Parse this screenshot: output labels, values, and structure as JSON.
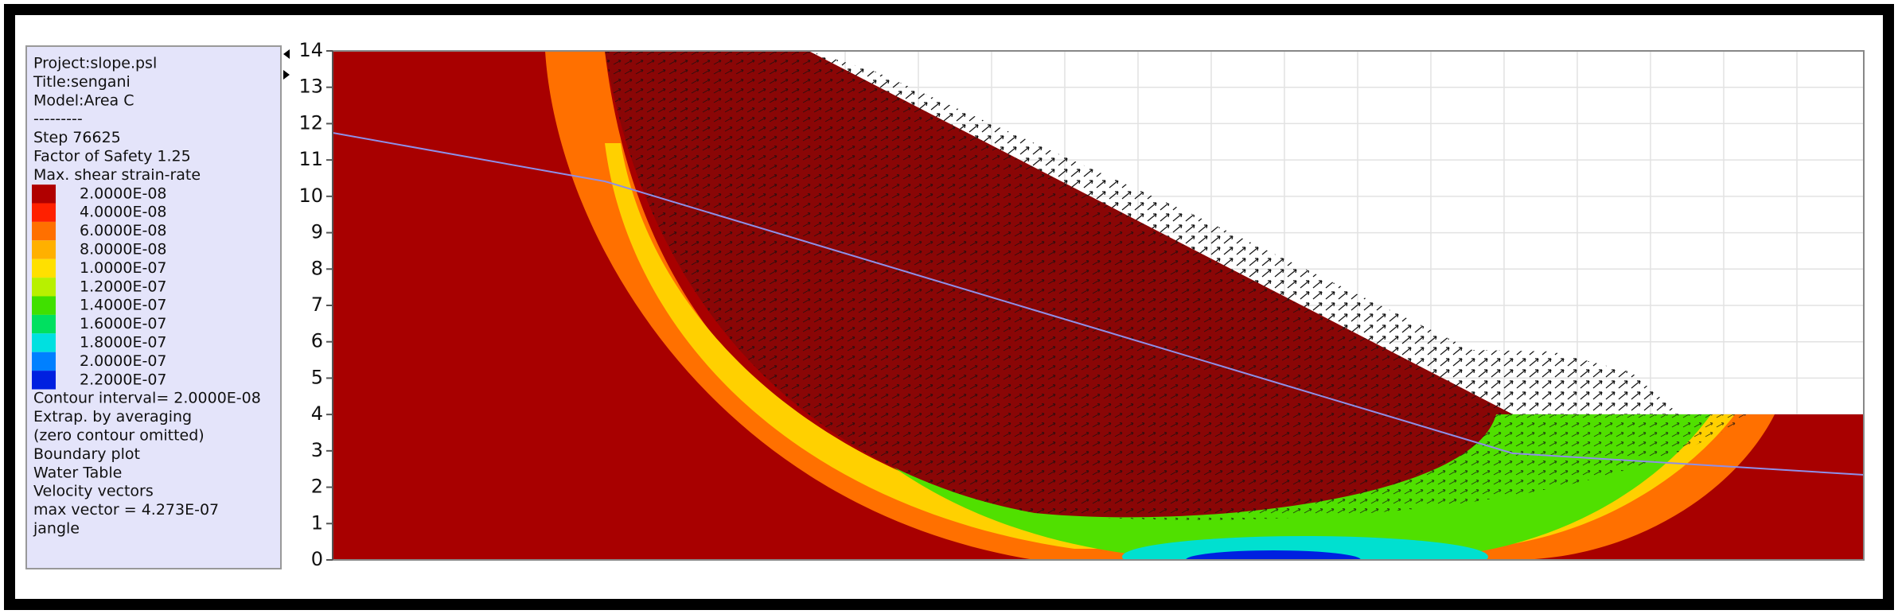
{
  "legend": {
    "header": [
      "Project:slope.psl",
      "Title:sengani",
      "Model:Area C",
      "---------",
      "Step     76625",
      "Factor of Safety  1.25",
      "Max. shear strain-rate"
    ],
    "levels": [
      {
        "label": "2.0000E-08",
        "color": "#b00000"
      },
      {
        "label": "4.0000E-08",
        "color": "#ff2000"
      },
      {
        "label": "6.0000E-08",
        "color": "#ff7000"
      },
      {
        "label": "8.0000E-08",
        "color": "#ffb000"
      },
      {
        "label": "1.0000E-07",
        "color": "#ffe000"
      },
      {
        "label": "1.2000E-07",
        "color": "#b8f000"
      },
      {
        "label": "1.4000E-07",
        "color": "#40e000"
      },
      {
        "label": "1.6000E-07",
        "color": "#00e060"
      },
      {
        "label": "1.8000E-07",
        "color": "#00e0e0"
      },
      {
        "label": "2.0000E-07",
        "color": "#0080ff"
      },
      {
        "label": "2.2000E-07",
        "color": "#0020e0"
      }
    ],
    "footer": [
      {
        "text": "Contour interval=  2.0000E-08"
      },
      {
        "text": "Extrap. by averaging"
      },
      {
        "text": "(zero contour omitted)"
      },
      {
        "text": "Boundary plot"
      },
      {
        "text": "Water Table",
        "color": "#8f8fe8"
      },
      {
        "text": "Velocity vectors"
      },
      {
        "text": "max vector =      4.273E-07"
      },
      {
        "text": "jangle"
      }
    ]
  },
  "axis": {
    "ylim": [
      0,
      14
    ],
    "yticks": [
      0,
      1,
      2,
      3,
      4,
      5,
      6,
      7,
      8,
      9,
      10,
      11,
      12,
      13,
      14
    ]
  }
}
